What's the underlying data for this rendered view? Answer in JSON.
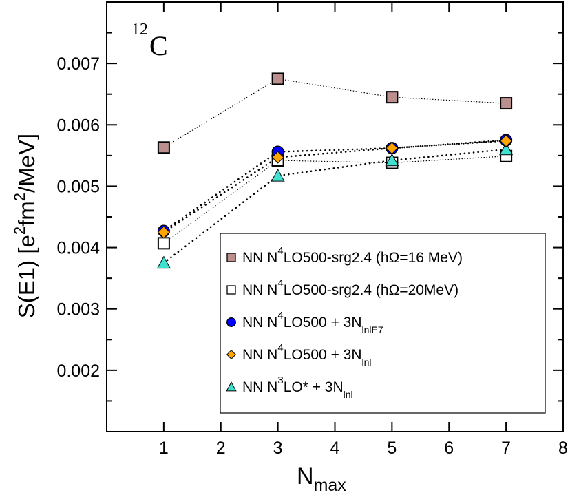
{
  "chart_data": {
    "type": "line",
    "title": "",
    "annotation": {
      "mass_number": "12",
      "element": "C"
    },
    "xlabel": {
      "main": "N",
      "sub": "max"
    },
    "ylabel": {
      "before_sup1": "S(E1) [e",
      "sup1": "2",
      "between": "fm",
      "sup2": "2",
      "after": "/MeV]"
    },
    "xlim": [
      0,
      8
    ],
    "ylim": [
      0.001,
      0.008
    ],
    "xticks": [
      1,
      2,
      3,
      4,
      5,
      6,
      7,
      8
    ],
    "xtick_labels": [
      "1",
      "2",
      "3",
      "4",
      "5",
      "6",
      "7",
      "8"
    ],
    "yticks": [
      0.002,
      0.003,
      0.004,
      0.005,
      0.006,
      0.007
    ],
    "ytick_labels": [
      "0.002",
      "0.003",
      "0.004",
      "0.005",
      "0.006",
      "0.007"
    ],
    "yminor_ticks": [
      0.0015,
      0.0025,
      0.0035,
      0.0045,
      0.0055,
      0.0065,
      0.0075
    ],
    "grid": false,
    "legend_position": "bottom-right",
    "series": [
      {
        "name": "NN N4LO500-srg2.4 (hΩ=16 MeV)",
        "legend": {
          "pre": "NN N",
          "sup": "4",
          "post": "LO500-srg2.4 (hΩ=16 MeV)",
          "sub": ""
        },
        "marker": "square",
        "fill": "#bc8f8f",
        "line": "thin-dotted",
        "x": [
          1,
          3,
          5,
          7
        ],
        "y": [
          0.00563,
          0.00675,
          0.00645,
          0.00635
        ]
      },
      {
        "name": "NN N4LO500-srg2.4 (hΩ=20MeV)",
        "legend": {
          "pre": "NN N",
          "sup": "4",
          "post": "LO500-srg2.4 (hΩ=20MeV)",
          "sub": ""
        },
        "marker": "square",
        "fill": "#ffffff",
        "line": "thin-dotted",
        "x": [
          1,
          3,
          5,
          7
        ],
        "y": [
          0.00407,
          0.00542,
          0.00538,
          0.00549
        ]
      },
      {
        "name": "NN N4LO500 + 3N lnlE7",
        "legend": {
          "pre": "NN N",
          "sup": "4",
          "post": "LO500 + 3N",
          "sub": "lnlE7"
        },
        "marker": "circle",
        "fill": "#0000ff",
        "line": "thick-dotted",
        "x": [
          1,
          3,
          5,
          7
        ],
        "y": [
          0.00427,
          0.00556,
          0.00562,
          0.00575
        ]
      },
      {
        "name": "NN N4LO500 + 3N lnl",
        "legend": {
          "pre": "NN N",
          "sup": "4",
          "post": "LO500 + 3N",
          "sub": "lnl"
        },
        "marker": "diamond",
        "fill": "#ffa500",
        "line": "thick-dotted",
        "x": [
          1,
          3,
          5,
          7
        ],
        "y": [
          0.00425,
          0.00547,
          0.00562,
          0.00574
        ]
      },
      {
        "name": "NN N3LO* + 3N lnl",
        "legend": {
          "pre": "NN N",
          "sup": "3",
          "post": "LO* + 3N",
          "sub": "lnl"
        },
        "marker": "triangle",
        "fill": "#40e0d0",
        "line": "thick-dotted",
        "x": [
          1,
          3,
          5,
          7
        ],
        "y": [
          0.00375,
          0.00517,
          0.00542,
          0.0056
        ]
      }
    ]
  }
}
